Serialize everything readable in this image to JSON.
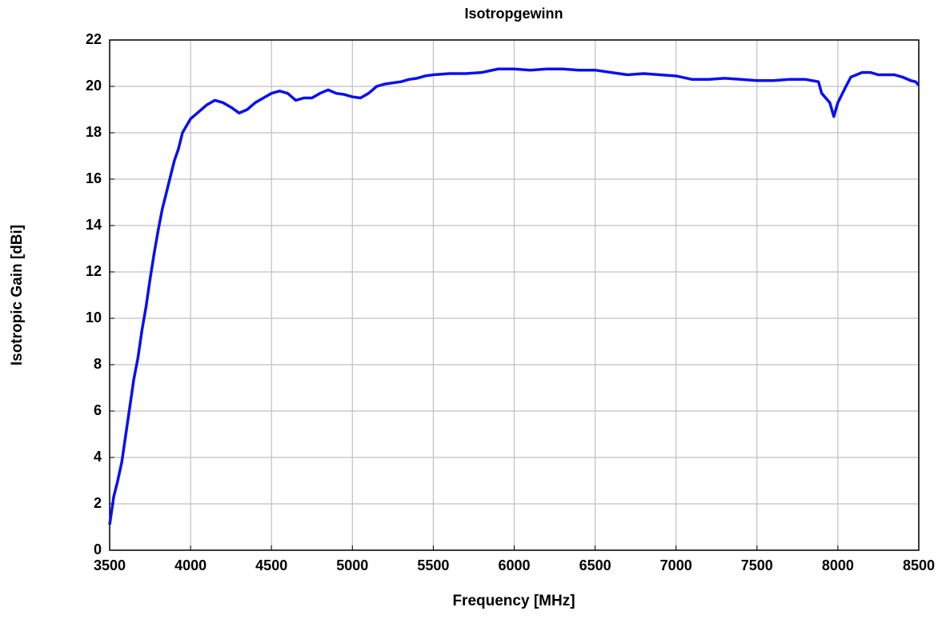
{
  "chart_data": {
    "type": "line",
    "title": "Isotropgewinn",
    "xlabel": "Frequency [MHz]",
    "ylabel": "Isotropic Gain [dBi]",
    "x": [
      3500,
      3525,
      3550,
      3575,
      3600,
      3625,
      3650,
      3675,
      3700,
      3725,
      3750,
      3775,
      3800,
      3825,
      3850,
      3875,
      3900,
      3925,
      3950,
      3975,
      4000,
      4050,
      4100,
      4150,
      4200,
      4250,
      4300,
      4350,
      4400,
      4450,
      4500,
      4550,
      4600,
      4650,
      4700,
      4750,
      4800,
      4850,
      4900,
      4950,
      5000,
      5050,
      5100,
      5150,
      5200,
      5250,
      5300,
      5350,
      5400,
      5450,
      5500,
      5600,
      5700,
      5800,
      5900,
      6000,
      6100,
      6200,
      6300,
      6400,
      6500,
      6600,
      6700,
      6800,
      6900,
      7000,
      7100,
      7200,
      7300,
      7400,
      7500,
      7600,
      7700,
      7800,
      7880,
      7900,
      7950,
      7975,
      8000,
      8050,
      8080,
      8150,
      8200,
      8250,
      8350,
      8400,
      8450,
      8480,
      8500
    ],
    "series": [
      {
        "name": "Isotropic Gain",
        "color": "#0a10f0",
        "values": [
          1.1,
          2.3,
          3.0,
          3.8,
          5.0,
          6.2,
          7.4,
          8.3,
          9.5,
          10.5,
          11.7,
          12.8,
          13.8,
          14.7,
          15.4,
          16.1,
          16.8,
          17.3,
          18.0,
          18.3,
          18.6,
          18.9,
          19.2,
          19.4,
          19.3,
          19.1,
          18.85,
          19.0,
          19.3,
          19.5,
          19.7,
          19.8,
          19.7,
          19.4,
          19.5,
          19.5,
          19.7,
          19.85,
          19.7,
          19.65,
          19.55,
          19.5,
          19.7,
          20.0,
          20.1,
          20.15,
          20.2,
          20.3,
          20.35,
          20.45,
          20.5,
          20.55,
          20.55,
          20.6,
          20.75,
          20.75,
          20.7,
          20.75,
          20.75,
          20.7,
          20.7,
          20.6,
          20.5,
          20.55,
          20.5,
          20.45,
          20.3,
          20.3,
          20.35,
          20.3,
          20.25,
          20.25,
          20.3,
          20.3,
          20.2,
          19.7,
          19.3,
          18.7,
          19.3,
          20.0,
          20.4,
          20.6,
          20.6,
          20.5,
          20.5,
          20.4,
          20.25,
          20.2,
          20.05
        ]
      }
    ],
    "xlim": [
      3500,
      8500
    ],
    "xticks": [
      3500,
      4000,
      4500,
      5000,
      5500,
      6000,
      6500,
      7000,
      7500,
      8000,
      8500
    ],
    "ylim": [
      0,
      22
    ],
    "yticks": [
      0,
      2,
      4,
      6,
      8,
      10,
      12,
      14,
      16,
      18,
      20,
      22
    ],
    "grid": true
  }
}
